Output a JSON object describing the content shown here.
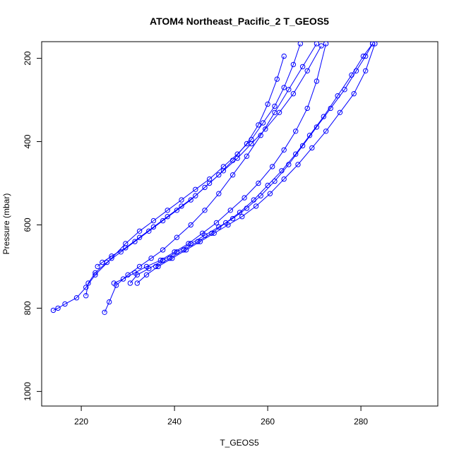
{
  "chart_data": {
    "type": "line",
    "title": "ATOM4 Northeast_Pacific_2 T_GEOS5",
    "xlabel": "T_GEOS5",
    "ylabel": "Pressure (mbar)",
    "xlim": [
      211.5,
      296.5
    ],
    "ylim": [
      1035,
      160
    ],
    "y_inverted": true,
    "x_ticks": [
      220,
      240,
      260,
      280
    ],
    "y_ticks": [
      200,
      400,
      600,
      800,
      1000
    ],
    "grid": false,
    "color": "#0000ff",
    "marker": "open-circle",
    "series": [
      {
        "x": [
          214.0,
          215.0,
          216.5,
          219.0,
          221.0,
          223.0,
          226.5,
          229.5,
          232.5,
          235.5,
          238.5,
          241.5,
          244.5,
          247.5,
          250.5,
          253.5,
          256.5,
          259.0,
          261.5,
          263.5,
          265.5,
          267.0
        ],
        "y": [
          805,
          800,
          790,
          775,
          750,
          720,
          680,
          645,
          615,
          590,
          565,
          540,
          515,
          490,
          460,
          430,
          395,
          355,
          315,
          270,
          215,
          165
        ]
      },
      {
        "x": [
          221.0,
          221.5,
          223.0,
          225.5,
          228.5,
          231.5,
          234.5,
          237.5,
          240.5,
          243.5,
          246.5,
          249.5,
          252.5,
          255.5,
          258.0,
          260.0,
          262.0,
          263.5
        ],
        "y": [
          770,
          740,
          715,
          690,
          665,
          640,
          615,
          590,
          565,
          540,
          510,
          480,
          445,
          405,
          360,
          310,
          250,
          195
        ]
      },
      {
        "x": [
          223.5,
          224.5,
          226.5,
          229.5,
          232.5,
          235.5,
          238.5,
          241.5,
          244.5,
          247.5,
          250.5,
          253.5,
          256.5,
          259.5,
          262.5,
          265.5,
          268.5,
          271.5
        ],
        "y": [
          700,
          690,
          675,
          655,
          630,
          605,
          580,
          555,
          530,
          500,
          470,
          440,
          405,
          370,
          330,
          285,
          230,
          170
        ]
      },
      {
        "x": [
          225.0,
          226.0,
          227.5,
          230.0,
          232.5,
          235.0,
          237.5,
          240.5,
          243.5,
          246.5,
          249.5,
          252.5,
          255.5,
          258.5,
          261.5,
          264.5,
          267.5,
          270.5
        ],
        "y": [
          810,
          785,
          745,
          720,
          700,
          680,
          660,
          630,
          600,
          565,
          525,
          480,
          435,
          385,
          330,
          275,
          220,
          165
        ]
      },
      {
        "x": [
          227.0,
          229.0,
          231.5,
          234.0,
          237.0,
          240.0,
          243.0,
          246.0,
          249.0,
          252.0,
          255.0,
          258.0,
          261.0,
          263.5,
          266.0,
          268.5,
          270.5,
          272.5
        ],
        "y": [
          740,
          730,
          715,
          700,
          685,
          665,
          645,
          620,
          595,
          565,
          535,
          500,
          460,
          420,
          375,
          320,
          255,
          165
        ]
      },
      {
        "x": [
          230.5,
          232.0,
          234.5,
          237.5,
          240.5,
          243.5,
          246.5,
          249.5,
          252.5,
          255.5,
          258.5,
          261.5,
          264.5,
          267.5,
          270.5,
          273.5,
          276.5,
          279.0,
          281.0,
          282.5
        ],
        "y": [
          740,
          720,
          705,
          685,
          665,
          645,
          625,
          605,
          585,
          560,
          530,
          495,
          455,
          410,
          365,
          320,
          275,
          230,
          195,
          165
        ]
      },
      {
        "x": [
          232.0,
          234.0,
          236.5,
          239.5,
          242.5,
          245.5,
          248.5,
          251.5,
          254.5,
          257.5,
          260.5,
          263.5,
          266.5,
          269.5,
          272.5,
          275.5,
          278.5,
          281.0,
          283.0
        ],
        "y": [
          740,
          720,
          700,
          680,
          660,
          640,
          620,
          600,
          580,
          555,
          525,
          490,
          455,
          415,
          375,
          330,
          285,
          230,
          165
        ]
      },
      {
        "x": [
          236.0,
          239.0,
          242.0,
          245.0,
          248.0,
          251.0,
          254.0,
          257.0,
          260.0,
          263.0,
          266.0,
          269.0,
          272.0,
          275.0,
          278.0,
          280.5,
          282.5
        ],
        "y": [
          700,
          680,
          660,
          640,
          620,
          595,
          570,
          540,
          505,
          470,
          430,
          385,
          340,
          290,
          240,
          195,
          165
        ]
      }
    ]
  }
}
